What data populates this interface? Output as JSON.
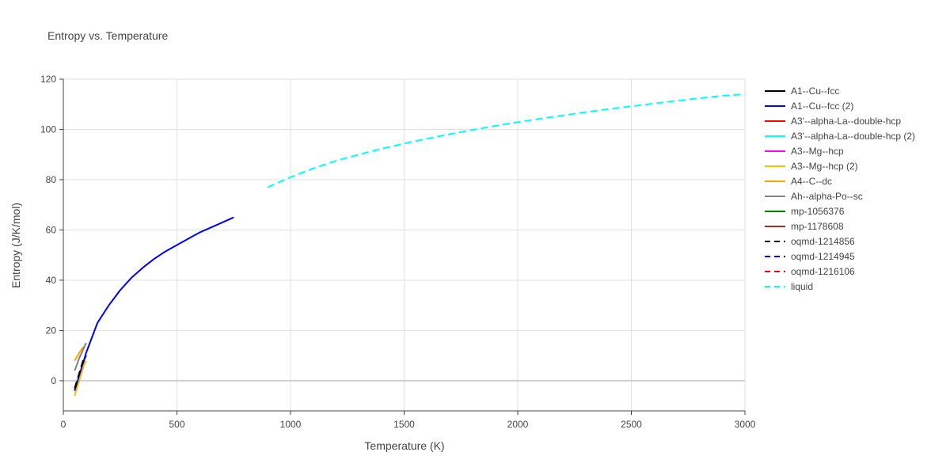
{
  "chart_data": {
    "type": "line",
    "title": "Entropy vs. Temperature",
    "xlabel": "Temperature (K)",
    "ylabel": "Entropy (J/K/mol)",
    "xlim": [
      0,
      3000
    ],
    "ylim": [
      -12,
      120
    ],
    "xticks": [
      0,
      500,
      1000,
      1500,
      2000,
      2500,
      3000
    ],
    "yticks": [
      0,
      20,
      40,
      60,
      80,
      100,
      120
    ],
    "grid": true,
    "legend_position": "right",
    "series": [
      {
        "name": "A1--Cu--fcc",
        "color": "#000000",
        "dash": "solid",
        "x": [
          50,
          60,
          70,
          80,
          90,
          100
        ],
        "y": [
          -4,
          -1,
          2,
          5,
          8,
          10
        ]
      },
      {
        "name": "A1--Cu--fcc (2)",
        "color": "#0000ff",
        "dash": "solid",
        "x": [
          50,
          75,
          100,
          150,
          200,
          250,
          300,
          350,
          400,
          450,
          500,
          550,
          600,
          650,
          700,
          750
        ],
        "y": [
          -4,
          3,
          11,
          23,
          30,
          36,
          41,
          45,
          48.5,
          51.5,
          54,
          56.5,
          59,
          61,
          63,
          65
        ]
      },
      {
        "name": "A3'--alpha-La--double-hcp",
        "color": "#ff0000",
        "dash": "solid",
        "x": [],
        "y": []
      },
      {
        "name": "A3'--alpha-La--double-hcp (2)",
        "color": "#00ffff",
        "dash": "solid",
        "x": [],
        "y": []
      },
      {
        "name": "A3--Mg--hcp",
        "color": "#ff00ff",
        "dash": "solid",
        "x": [],
        "y": []
      },
      {
        "name": "A3--Mg--hcp (2)",
        "color": "#f0c000",
        "dash": "solid",
        "x": [
          50,
          60,
          70,
          80,
          90,
          100
        ],
        "y": [
          -6,
          -3,
          0,
          3,
          6,
          8
        ]
      },
      {
        "name": "A4--C--dc",
        "color": "#ffa500",
        "dash": "solid",
        "x": [
          50,
          60,
          70,
          80,
          90
        ],
        "y": [
          8,
          9.5,
          11,
          12.5,
          13.5
        ]
      },
      {
        "name": "Ah--alpha-Po--sc",
        "color": "#808080",
        "dash": "solid",
        "x": [
          50,
          60,
          70,
          80,
          90,
          100
        ],
        "y": [
          4,
          6.5,
          9,
          11,
          13,
          15
        ]
      },
      {
        "name": "mp-1056376",
        "color": "#008000",
        "dash": "solid",
        "x": [],
        "y": []
      },
      {
        "name": "mp-1178608",
        "color": "#a52a2a",
        "dash": "solid",
        "x": [],
        "y": []
      },
      {
        "name": "oqmd-1214856",
        "color": "#000000",
        "dash": "dash",
        "x": [
          50,
          55,
          60,
          70,
          80,
          90
        ],
        "y": [
          -3,
          -1.5,
          0,
          3,
          6,
          9
        ]
      },
      {
        "name": "oqmd-1214945",
        "color": "#0000ff",
        "dash": "dash",
        "x": [],
        "y": []
      },
      {
        "name": "oqmd-1216106",
        "color": "#ff0000",
        "dash": "dash",
        "x": [],
        "y": []
      },
      {
        "name": "liquid",
        "color": "#00ffff",
        "dash": "dash",
        "x": [
          900,
          1000,
          1100,
          1200,
          1300,
          1400,
          1500,
          1600,
          1700,
          1800,
          1900,
          2000,
          2100,
          2200,
          2300,
          2400,
          2500,
          2600,
          2700,
          2800,
          2900,
          3000
        ],
        "y": [
          77,
          81,
          84.5,
          87.5,
          90,
          92.3,
          94.4,
          96.3,
          98.1,
          99.8,
          101.4,
          102.9,
          104.3,
          105.6,
          106.9,
          108.1,
          109.2,
          110.3,
          111.4,
          112.4,
          113.4,
          114
        ]
      }
    ]
  }
}
